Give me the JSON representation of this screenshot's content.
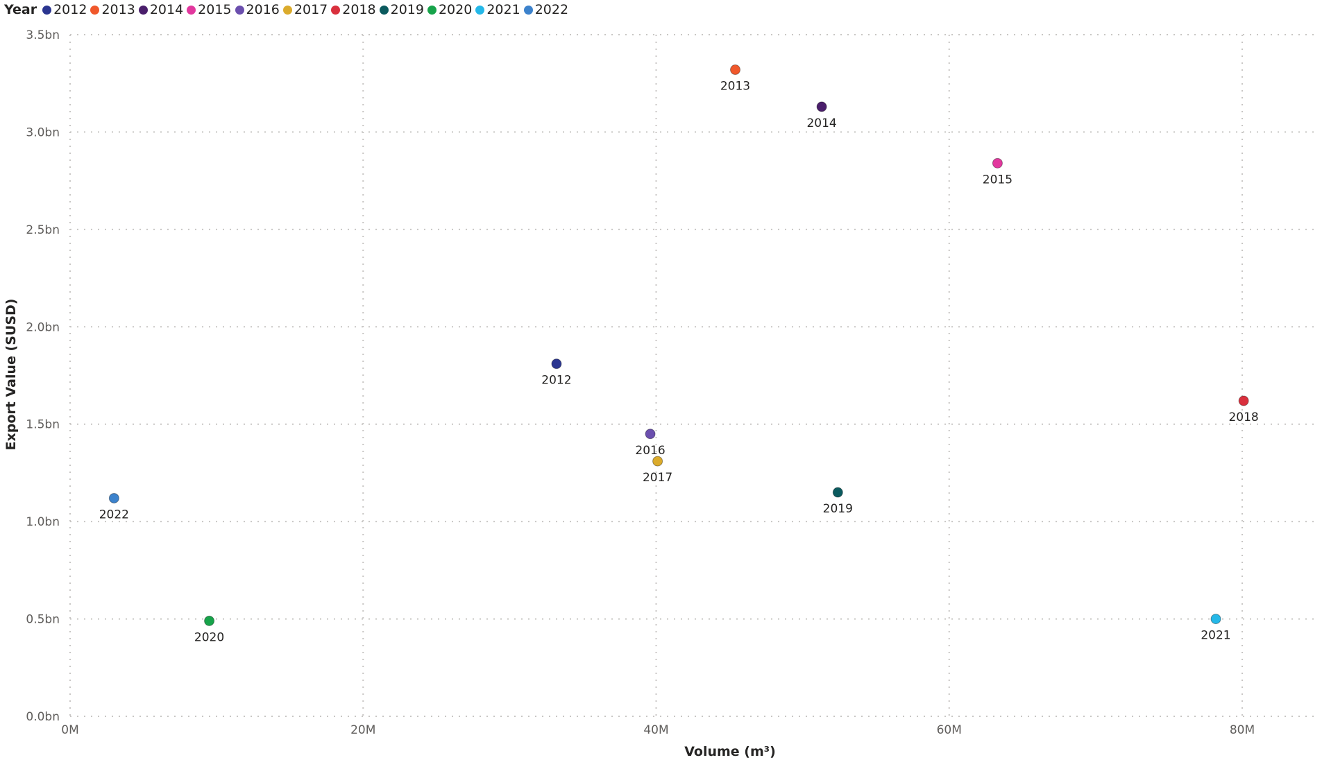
{
  "chart_data": {
    "type": "scatter",
    "title": "",
    "xlabel": "Volume (m³)",
    "ylabel": "Export Value (SUSD)",
    "xlim": [
      0,
      85
    ],
    "ylim": [
      0,
      3.5
    ],
    "x_ticks": [
      {
        "value": 0,
        "label": "0M"
      },
      {
        "value": 20,
        "label": "20M"
      },
      {
        "value": 40,
        "label": "40M"
      },
      {
        "value": 60,
        "label": "60M"
      },
      {
        "value": 80,
        "label": "80M"
      }
    ],
    "y_ticks": [
      {
        "value": 0,
        "label": "0.0bn"
      },
      {
        "value": 0.5,
        "label": "0.5bn"
      },
      {
        "value": 1.0,
        "label": "1.0bn"
      },
      {
        "value": 1.5,
        "label": "1.5bn"
      },
      {
        "value": 2.0,
        "label": "2.0bn"
      },
      {
        "value": 2.5,
        "label": "2.5bn"
      },
      {
        "value": 3.0,
        "label": "3.0bn"
      },
      {
        "value": 3.5,
        "label": "3.5bn"
      }
    ],
    "grid": true,
    "legend": {
      "title": "Year",
      "position": "top-left"
    },
    "x_unit": "M m³",
    "y_unit": "bn USD",
    "series": [
      {
        "name": "2012",
        "color": "#2b3590",
        "x": 33.2,
        "y": 1.81
      },
      {
        "name": "2013",
        "color": "#f0582b",
        "x": 45.4,
        "y": 3.32
      },
      {
        "name": "2014",
        "color": "#4a1e6b",
        "x": 51.3,
        "y": 3.13
      },
      {
        "name": "2015",
        "color": "#e2389e",
        "x": 63.3,
        "y": 2.84
      },
      {
        "name": "2016",
        "color": "#6b4fae",
        "x": 39.6,
        "y": 1.45
      },
      {
        "name": "2017",
        "color": "#dbab2c",
        "x": 40.1,
        "y": 1.31
      },
      {
        "name": "2018",
        "color": "#d9303d",
        "x": 80.1,
        "y": 1.62
      },
      {
        "name": "2019",
        "color": "#0b5a5e",
        "x": 52.4,
        "y": 1.15
      },
      {
        "name": "2020",
        "color": "#17a34a",
        "x": 9.5,
        "y": 0.49
      },
      {
        "name": "2021",
        "color": "#25b8e8",
        "x": 78.2,
        "y": 0.5
      },
      {
        "name": "2022",
        "color": "#3c82cc",
        "x": 3.0,
        "y": 1.12
      }
    ]
  }
}
